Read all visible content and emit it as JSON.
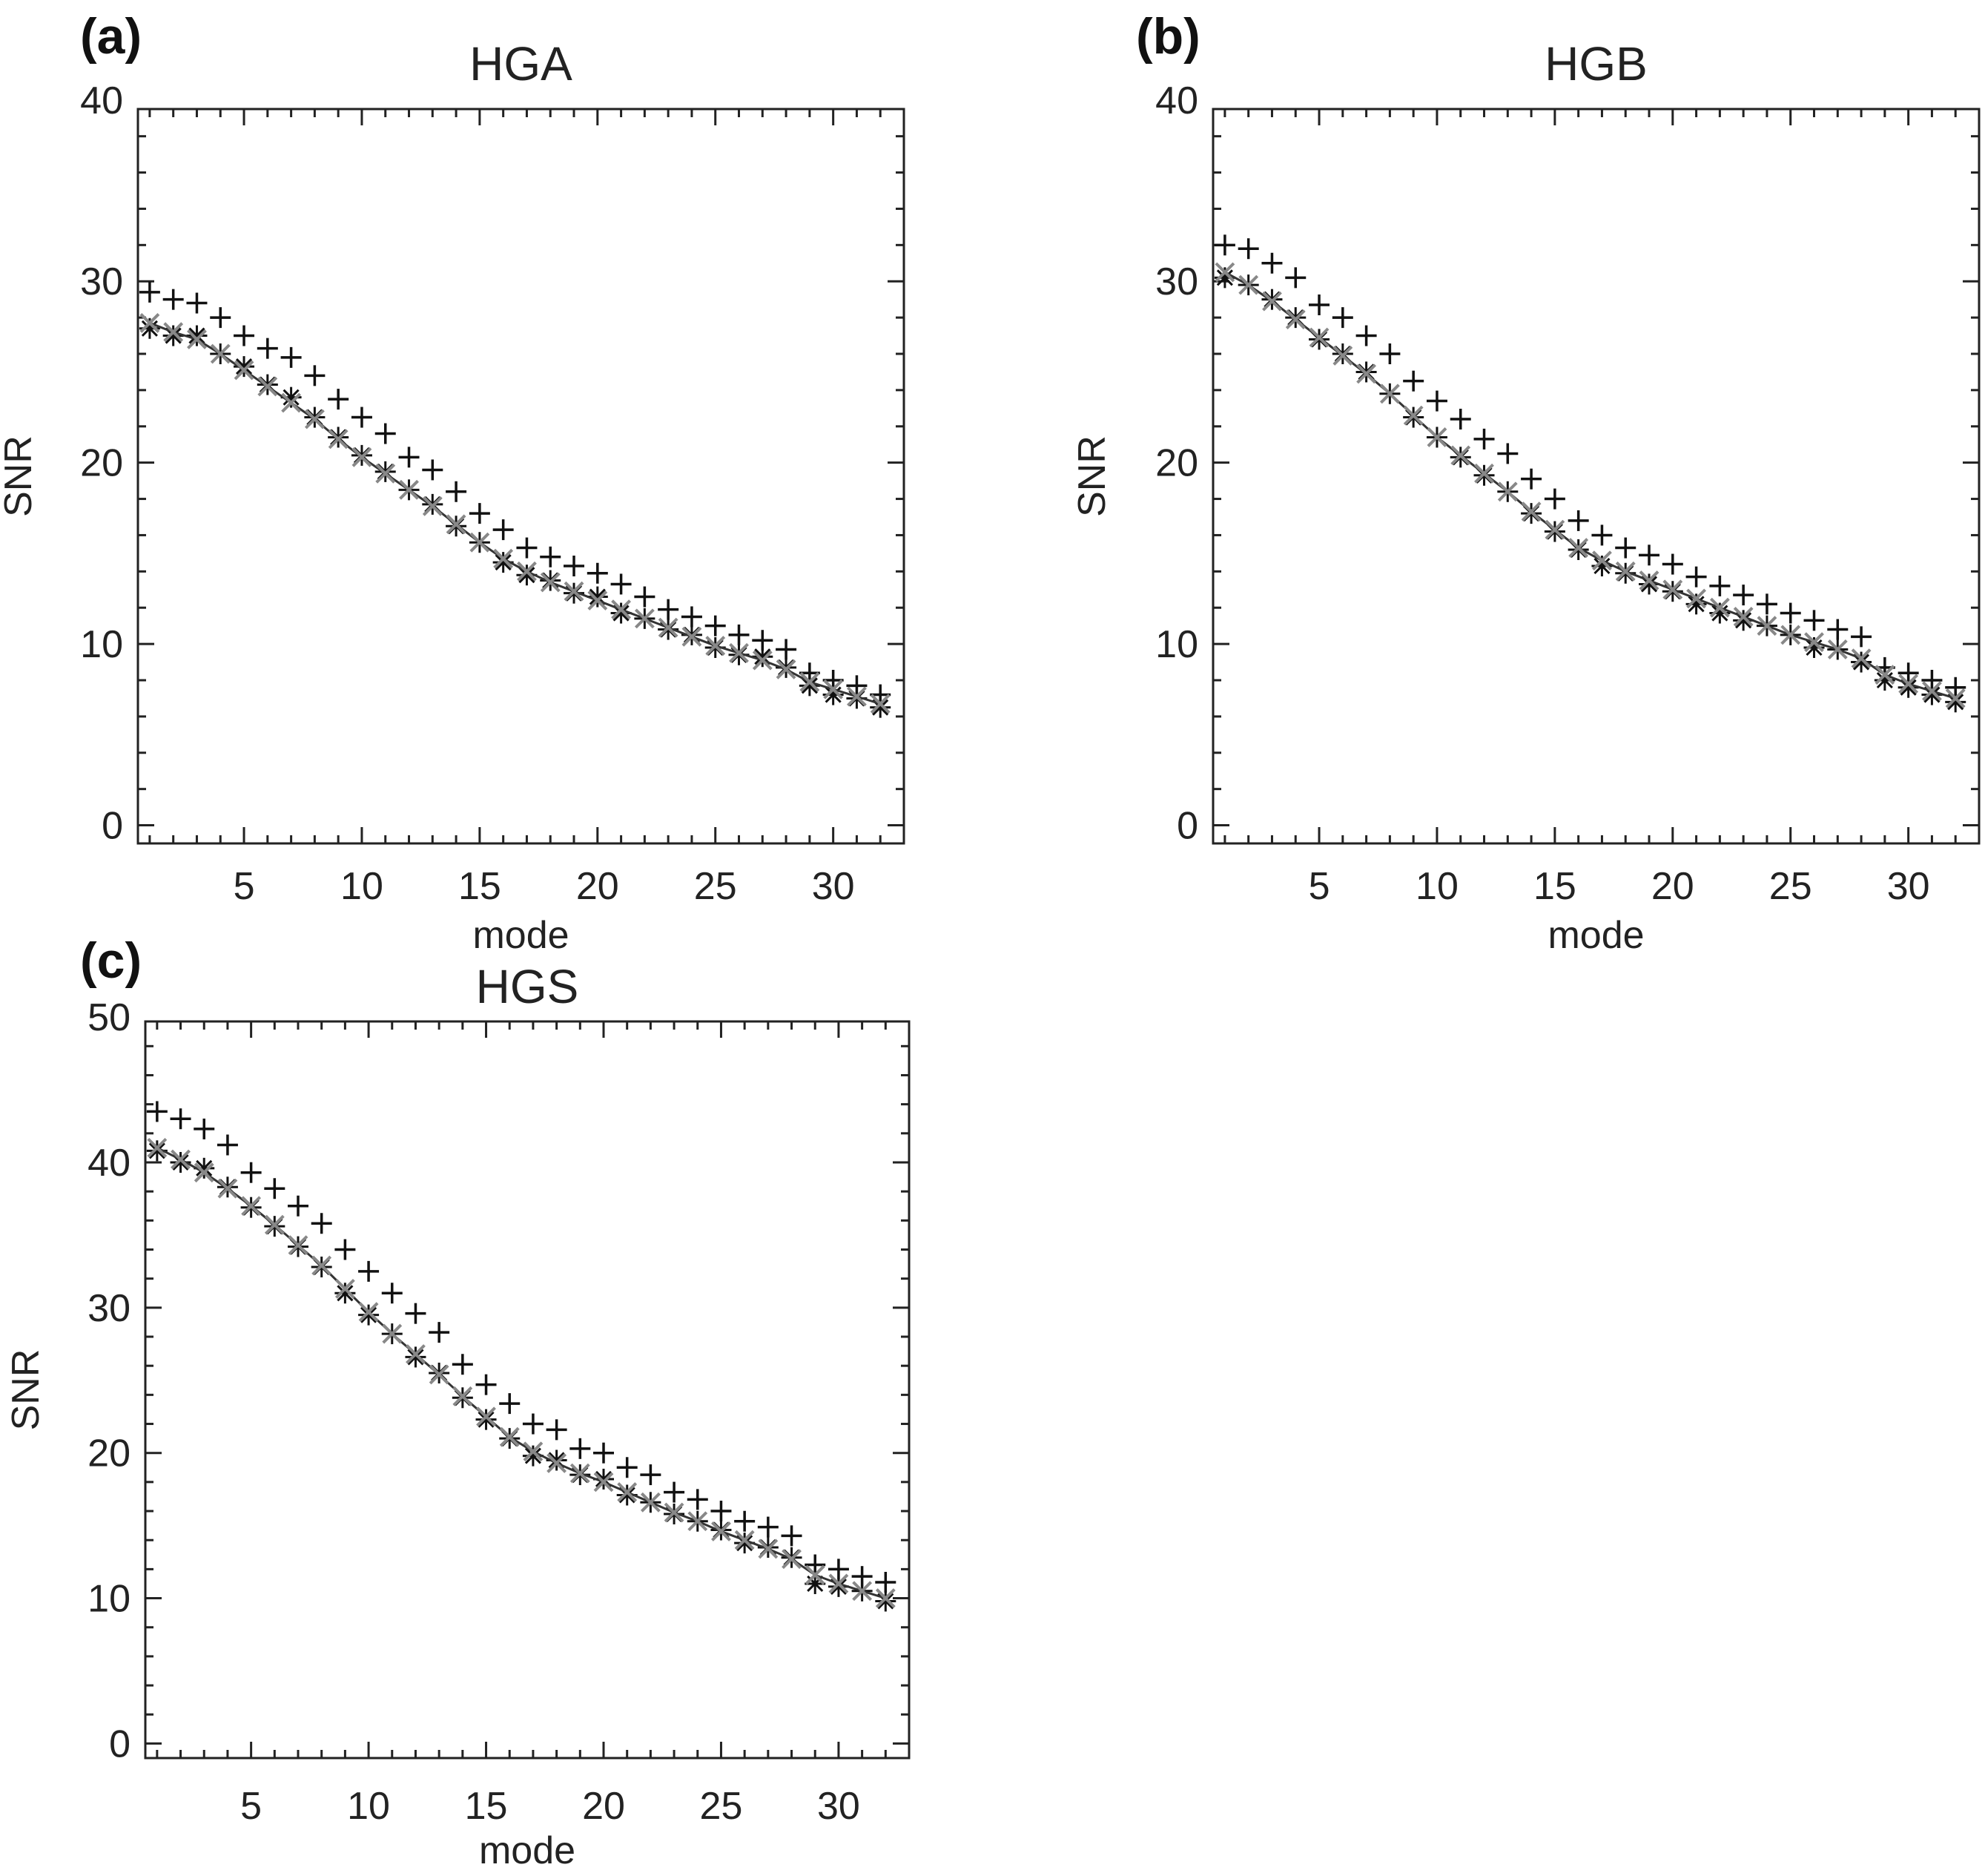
{
  "chart_data": [
    {
      "type": "scatter",
      "panel_label": "(a)",
      "title": "HGA",
      "xlabel": "mode",
      "ylabel": "SNR",
      "xlim": [
        0.5,
        33
      ],
      "ylim": [
        -1,
        39.5
      ],
      "x_ticks": [
        5,
        10,
        15,
        20,
        25,
        30
      ],
      "y_ticks": [
        0,
        10,
        20,
        30,
        40
      ],
      "x": [
        1,
        2,
        3,
        4,
        5,
        6,
        7,
        8,
        9,
        10,
        11,
        12,
        13,
        14,
        15,
        16,
        17,
        18,
        19,
        20,
        21,
        22,
        23,
        24,
        25,
        26,
        27,
        28,
        29,
        30,
        31,
        32
      ],
      "series": [
        {
          "name": "plus",
          "marker": "+",
          "color": "#111111",
          "values": [
            29.4,
            29.0,
            28.8,
            28.0,
            27.0,
            26.3,
            25.8,
            24.8,
            23.5,
            22.5,
            21.6,
            20.3,
            19.6,
            18.4,
            17.2,
            16.3,
            15.3,
            14.8,
            14.3,
            13.9,
            13.3,
            12.6,
            11.9,
            11.5,
            11.0,
            10.5,
            10.2,
            9.7,
            8.4,
            8.0,
            7.7,
            7.2
          ]
        },
        {
          "name": "asterisk",
          "marker": "*",
          "color": "#111111",
          "values": [
            27.4,
            27.0,
            27.0,
            26.0,
            25.3,
            24.3,
            23.6,
            22.5,
            21.4,
            20.4,
            19.5,
            18.5,
            17.7,
            16.5,
            15.6,
            14.5,
            13.8,
            13.5,
            12.8,
            12.6,
            11.7,
            11.4,
            10.8,
            10.5,
            9.8,
            9.4,
            9.3,
            8.7,
            7.7,
            7.2,
            7.0,
            6.5
          ]
        },
        {
          "name": "x-line",
          "marker": "x",
          "color": "#888888",
          "line": true,
          "values": [
            27.7,
            27.2,
            26.8,
            26.0,
            25.1,
            24.2,
            23.3,
            22.4,
            21.3,
            20.3,
            19.4,
            18.5,
            17.6,
            16.6,
            15.6,
            14.7,
            14.0,
            13.4,
            12.9,
            12.4,
            11.9,
            11.4,
            10.9,
            10.4,
            9.9,
            9.5,
            9.1,
            8.6,
            7.9,
            7.5,
            7.1,
            6.7
          ]
        }
      ]
    },
    {
      "type": "scatter",
      "panel_label": "(b)",
      "title": "HGB",
      "xlabel": "mode",
      "ylabel": "SNR",
      "xlim": [
        0.5,
        33
      ],
      "ylim": [
        -1,
        39.5
      ],
      "x_ticks": [
        5,
        10,
        15,
        20,
        25,
        30
      ],
      "y_ticks": [
        0,
        10,
        20,
        30,
        40
      ],
      "x": [
        1,
        2,
        3,
        4,
        5,
        6,
        7,
        8,
        9,
        10,
        11,
        12,
        13,
        14,
        15,
        16,
        17,
        18,
        19,
        20,
        21,
        22,
        23,
        24,
        25,
        26,
        27,
        28,
        29,
        30,
        31,
        32
      ],
      "series": [
        {
          "name": "plus",
          "marker": "+",
          "color": "#111111",
          "values": [
            32.0,
            31.8,
            31.0,
            30.2,
            28.7,
            28.0,
            27.0,
            26.0,
            24.5,
            23.4,
            22.4,
            21.3,
            20.5,
            19.1,
            18.0,
            16.8,
            16.0,
            15.3,
            14.9,
            14.4,
            13.7,
            13.2,
            12.7,
            12.2,
            11.7,
            11.3,
            10.8,
            10.4,
            8.7,
            8.4,
            8.0,
            7.6
          ]
        },
        {
          "name": "asterisk",
          "marker": "*",
          "color": "#111111",
          "values": [
            30.2,
            29.8,
            29.0,
            28.0,
            26.8,
            26.0,
            25.0,
            23.8,
            22.5,
            21.4,
            20.3,
            19.3,
            18.4,
            17.2,
            16.2,
            15.2,
            14.3,
            13.9,
            13.3,
            12.9,
            12.2,
            11.7,
            11.3,
            11.0,
            10.5,
            9.8,
            9.7,
            9.0,
            8.0,
            7.6,
            7.2,
            6.8
          ]
        },
        {
          "name": "x-line",
          "marker": "x",
          "color": "#888888",
          "line": true,
          "values": [
            30.5,
            29.8,
            28.9,
            27.9,
            26.9,
            25.9,
            24.9,
            23.8,
            22.6,
            21.4,
            20.4,
            19.4,
            18.4,
            17.3,
            16.3,
            15.3,
            14.6,
            14.0,
            13.5,
            13.0,
            12.5,
            12.0,
            11.5,
            11.0,
            10.5,
            10.1,
            9.7,
            9.2,
            8.3,
            7.8,
            7.4,
            7.0
          ]
        }
      ]
    },
    {
      "type": "scatter",
      "panel_label": "(c)",
      "title": "HGS",
      "xlabel": "mode",
      "ylabel": "SNR",
      "xlim": [
        0.5,
        33
      ],
      "ylim": [
        -1,
        49.7
      ],
      "x_ticks": [
        5,
        10,
        15,
        20,
        25,
        30
      ],
      "y_ticks": [
        0,
        10,
        20,
        30,
        40,
        50
      ],
      "x": [
        1,
        2,
        3,
        4,
        5,
        6,
        7,
        8,
        9,
        10,
        11,
        12,
        13,
        14,
        15,
        16,
        17,
        18,
        19,
        20,
        21,
        22,
        23,
        24,
        25,
        26,
        27,
        28,
        29,
        30,
        31,
        32
      ],
      "series": [
        {
          "name": "plus",
          "marker": "+",
          "color": "#111111",
          "values": [
            43.5,
            43.0,
            42.3,
            41.2,
            39.3,
            38.2,
            37.0,
            35.8,
            34.0,
            32.5,
            31.0,
            29.6,
            28.3,
            26.1,
            24.7,
            23.4,
            22.0,
            21.6,
            20.3,
            20.0,
            19.0,
            18.5,
            17.3,
            16.8,
            16.0,
            15.3,
            14.9,
            14.3,
            12.3,
            12.0,
            11.5,
            11.1
          ]
        },
        {
          "name": "asterisk",
          "marker": "*",
          "color": "#111111",
          "values": [
            40.8,
            40.0,
            39.6,
            38.3,
            36.9,
            35.6,
            34.2,
            32.8,
            31.0,
            29.5,
            28.2,
            26.6,
            25.5,
            23.8,
            22.3,
            21.0,
            19.8,
            19.5,
            18.5,
            18.2,
            17.1,
            16.6,
            15.8,
            15.3,
            14.7,
            13.8,
            13.5,
            12.8,
            11.0,
            10.8,
            10.5,
            9.8
          ]
        },
        {
          "name": "x-line",
          "marker": "x",
          "color": "#888888",
          "line": true,
          "values": [
            41.0,
            40.2,
            39.3,
            38.2,
            37.0,
            35.7,
            34.3,
            32.9,
            31.3,
            29.7,
            28.2,
            26.8,
            25.4,
            23.9,
            22.5,
            21.1,
            20.1,
            19.3,
            18.6,
            18.0,
            17.3,
            16.6,
            15.9,
            15.3,
            14.6,
            14.0,
            13.4,
            12.7,
            11.6,
            11.0,
            10.5,
            10.0
          ]
        }
      ]
    }
  ]
}
